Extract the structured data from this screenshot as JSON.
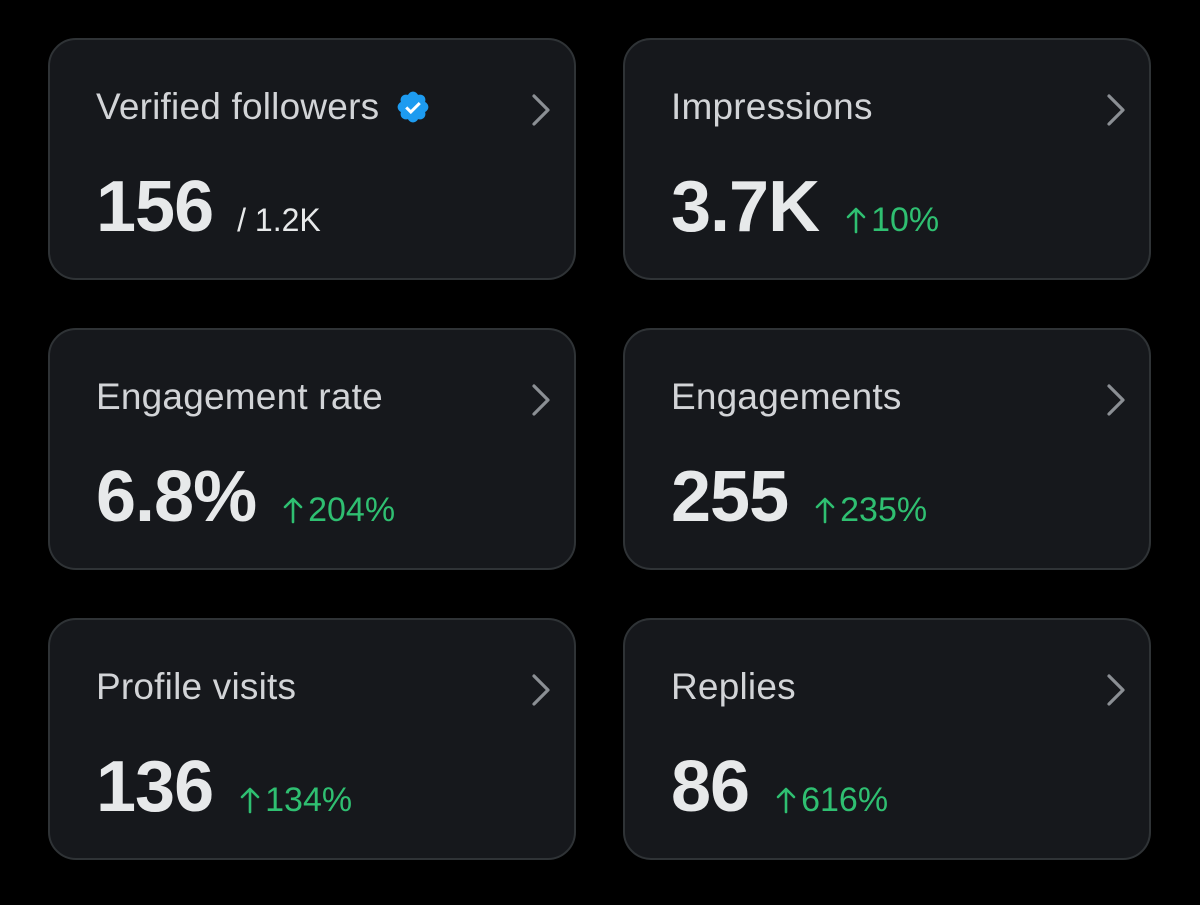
{
  "cards": [
    {
      "label": "Verified followers",
      "value": "156",
      "sub": "/ 1.2K",
      "delta": ""
    },
    {
      "label": "Impressions",
      "value": "3.7K",
      "delta": "10%"
    },
    {
      "label": "Engagement rate",
      "value": "6.8%",
      "delta": "204%"
    },
    {
      "label": "Engagements",
      "value": "255",
      "delta": "235%"
    },
    {
      "label": "Profile visits",
      "value": "136",
      "delta": "134%"
    },
    {
      "label": "Replies",
      "value": "86",
      "delta": "616%"
    }
  ],
  "icons": {
    "verified": "verified-badge-icon",
    "chevron": "chevron-right-icon",
    "arrow_up": "arrow-up-icon"
  },
  "colors": {
    "background": "#000000",
    "card_background": "#16181c",
    "card_border": "#2f3336",
    "positive": "#2fbf71",
    "verified_blue": "#1d9bf0",
    "primary_text": "#e7e9ea",
    "secondary_text": "#d2d4d7"
  }
}
